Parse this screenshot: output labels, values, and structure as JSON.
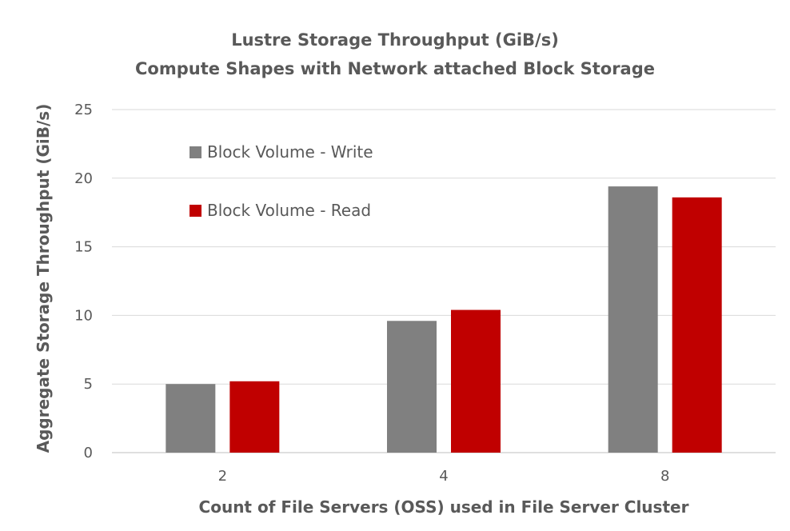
{
  "chart_data": {
    "type": "bar",
    "title": "Lustre Storage Throughput (GiB/s)",
    "subtitle": "Compute Shapes with Network attached Block Storage",
    "xlabel": "Count of File Servers (OSS) used in File Server Cluster",
    "ylabel": "Aggregate Storage Throughput (GiB/s)",
    "categories": [
      "2",
      "4",
      "8"
    ],
    "series": [
      {
        "name": "Block Volume - Write",
        "color": "#808080",
        "values": [
          5.0,
          9.6,
          19.4
        ]
      },
      {
        "name": "Block Volume - Read",
        "color": "#C00000",
        "values": [
          5.2,
          10.4,
          18.6
        ]
      }
    ],
    "ylim": [
      0,
      25
    ],
    "yticks": [
      "0",
      "5",
      "10",
      "15",
      "20",
      "25"
    ],
    "grid": true,
    "legend_position": "top-left"
  }
}
